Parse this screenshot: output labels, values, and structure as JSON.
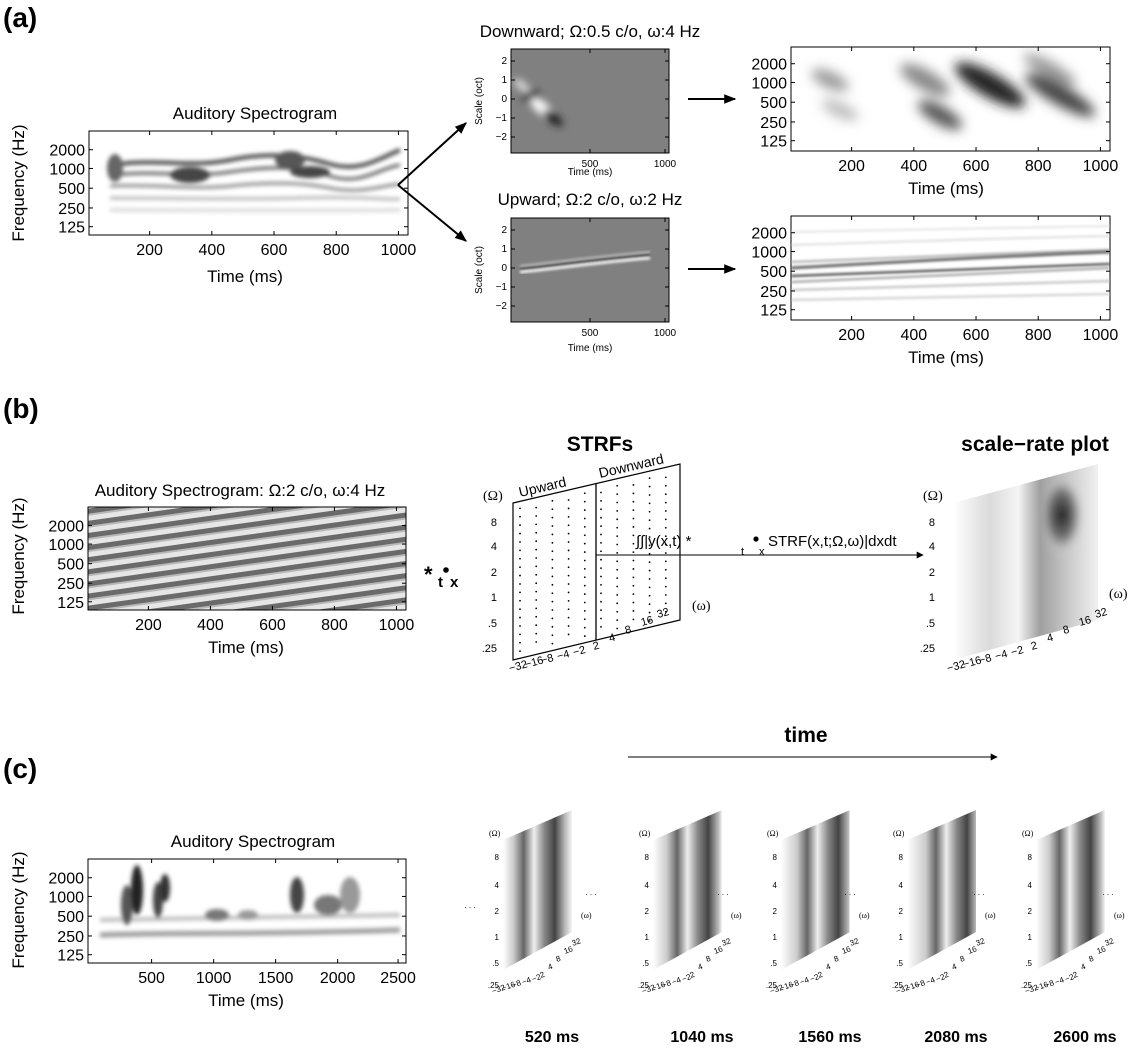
{
  "panels": {
    "a": {
      "label": "(a)",
      "spectrogram": {
        "title": "Auditory Spectrogram",
        "ylabel": "Frequency (Hz)",
        "xlabel": "Time (ms)",
        "yticks": [
          "2000",
          "1000",
          "500",
          "250",
          "125"
        ],
        "xticks": [
          "200",
          "400",
          "600",
          "800",
          "1000"
        ]
      },
      "strf_down": {
        "title": "Downward; Ω:0.5 c/o, ω:4 Hz",
        "ylabel": "Scale (oct)",
        "xlabel": "Time (ms)",
        "yticks": [
          "2",
          "1",
          "0",
          "−1",
          "−2"
        ],
        "xticks": [
          "500",
          "1000"
        ]
      },
      "strf_up": {
        "title": "Upward; Ω:2 c/o, ω:2 Hz",
        "ylabel": "Scale (oct)",
        "xlabel": "Time (ms)",
        "yticks": [
          "2",
          "1",
          "0",
          "−1",
          "−2"
        ],
        "xticks": [
          "500",
          "1000"
        ]
      },
      "output_top": {
        "xlabel": "Time (ms)",
        "yticks": [
          "2000",
          "1000",
          "500",
          "250",
          "125"
        ],
        "xticks": [
          "200",
          "400",
          "600",
          "800",
          "1000"
        ]
      },
      "output_bottom": {
        "xlabel": "Time (ms)",
        "yticks": [
          "2000",
          "1000",
          "500",
          "250",
          "125"
        ],
        "xticks": [
          "200",
          "400",
          "600",
          "800",
          "1000"
        ]
      }
    },
    "b": {
      "label": "(b)",
      "spectrogram": {
        "title": "Auditory Spectrogram: Ω:2 c/o, ω:4 Hz",
        "ylabel": "Frequency (Hz)",
        "xlabel": "Time (ms)",
        "yticks": [
          "2000",
          "1000",
          "500",
          "250",
          "125"
        ],
        "xticks": [
          "200",
          "400",
          "600",
          "800",
          "1000"
        ]
      },
      "operator": "*",
      "operator_sub": "t",
      "operator_sub2": "x",
      "strfs_title": "STRFs",
      "upward_label": "Upward",
      "downward_label": "Downward",
      "omega_cap_label": "(Ω)",
      "omega_label": "(ω)",
      "scale_ticks": [
        "8",
        "4",
        "2",
        "1",
        ".5",
        ".25"
      ],
      "rate_ticks_neg": [
        "−32",
        "−16",
        "−8",
        "−4",
        "−2"
      ],
      "rate_ticks_pos": [
        "2",
        "4",
        "8",
        "16",
        "32"
      ],
      "integral_pre": "∫∫|y(x,t) *",
      "integral_t": "t",
      "integral_x": "x",
      "integral_post": "STRF(x,t;Ω,ω)|dxdt",
      "scale_rate_title": "scale−rate plot"
    },
    "c": {
      "label": "(c)",
      "spectrogram": {
        "title": "Auditory Spectrogram",
        "ylabel": "Frequency (Hz)",
        "xlabel": "Time (ms)",
        "yticks": [
          "2000",
          "1000",
          "500",
          "250",
          "125"
        ],
        "xticks": [
          "500",
          "1000",
          "1500",
          "2000",
          "2500"
        ]
      },
      "time_label": "time",
      "frame_times": [
        "520 ms",
        "1040 ms",
        "1560 ms",
        "2080 ms",
        "2600 ms"
      ],
      "ellipsis": ". . ."
    }
  }
}
